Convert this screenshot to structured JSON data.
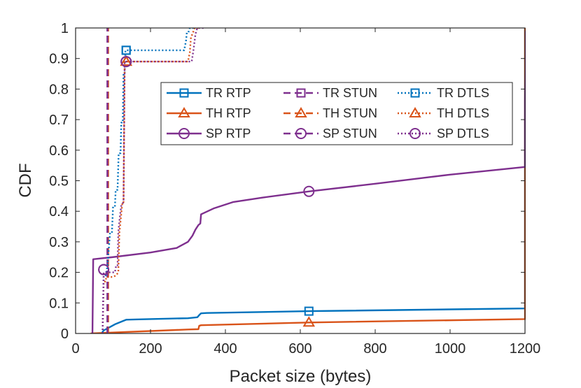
{
  "chart_data": {
    "type": "line",
    "title": "",
    "xlabel": "Packet size (bytes)",
    "ylabel": "CDF",
    "xlim": [
      0,
      1200
    ],
    "ylim": [
      0,
      1
    ],
    "xticks": [
      0,
      200,
      400,
      600,
      800,
      1000,
      1200
    ],
    "yticks": [
      0,
      0.1,
      0.2,
      0.3,
      0.4,
      0.5,
      0.6,
      0.7,
      0.8,
      0.9,
      1
    ],
    "xtick_labels": [
      "0",
      "200",
      "400",
      "600",
      "800",
      "1000",
      "1200"
    ],
    "ytick_labels": [
      "0",
      "0.1",
      "0.2",
      "0.3",
      "0.4",
      "0.5",
      "0.6",
      "0.7",
      "0.8",
      "0.9",
      "1"
    ],
    "grid": false,
    "legend_position": "top-right",
    "legend_columns": 3,
    "colors": {
      "TR": "#0072BD",
      "TH": "#D95319",
      "SP": "#7E2F8E"
    },
    "series": [
      {
        "name": "TR RTP",
        "color": "#0072BD",
        "dash": "solid",
        "marker": "square",
        "points": [
          [
            70,
            0
          ],
          [
            72,
            0.005
          ],
          [
            75,
            0.01
          ],
          [
            90,
            0.02
          ],
          [
            105,
            0.03
          ],
          [
            125,
            0.04
          ],
          [
            135,
            0.045
          ],
          [
            160,
            0.046
          ],
          [
            300,
            0.05
          ],
          [
            325,
            0.053
          ],
          [
            330,
            0.06
          ],
          [
            335,
            0.066
          ],
          [
            350,
            0.067
          ],
          [
            623,
            0.073
          ],
          [
            1200,
            0.082
          ],
          [
            1200,
            1
          ]
        ],
        "markers": [
          [
            135,
            0.927
          ],
          [
            623,
            0.073
          ]
        ]
      },
      {
        "name": "TH RTP",
        "color": "#D95319",
        "dash": "solid",
        "marker": "triangle",
        "points": [
          [
            40,
            0
          ],
          [
            300,
            0.013
          ],
          [
            328,
            0.014
          ],
          [
            330,
            0.025
          ],
          [
            335,
            0.027
          ],
          [
            623,
            0.036
          ],
          [
            1200,
            0.047
          ],
          [
            1200,
            1
          ]
        ],
        "markers": [
          [
            135,
            0.89
          ],
          [
            623,
            0.036
          ]
        ]
      },
      {
        "name": "SP RTP",
        "color": "#7E2F8E",
        "dash": "solid",
        "marker": "circle",
        "points": [
          [
            45,
            0
          ],
          [
            47,
            0.243
          ],
          [
            100,
            0.25
          ],
          [
            200,
            0.265
          ],
          [
            270,
            0.28
          ],
          [
            300,
            0.3
          ],
          [
            312,
            0.32
          ],
          [
            320,
            0.34
          ],
          [
            328,
            0.355
          ],
          [
            333,
            0.36
          ],
          [
            335,
            0.39
          ],
          [
            370,
            0.41
          ],
          [
            420,
            0.43
          ],
          [
            500,
            0.445
          ],
          [
            623,
            0.465
          ],
          [
            800,
            0.49
          ],
          [
            1000,
            0.52
          ],
          [
            1200,
            0.545
          ],
          [
            1200,
            0.76
          ],
          [
            1203,
            0.99
          ]
        ],
        "markers": [
          [
            75,
            0.209
          ],
          [
            135,
            0.89
          ],
          [
            623,
            0.465
          ]
        ]
      },
      {
        "name": "TR STUN",
        "color": "#7E2F8E",
        "dash": "dashed",
        "marker": "square",
        "points": [
          [
            85,
            0
          ],
          [
            85,
            1
          ]
        ],
        "markers": []
      },
      {
        "name": "TH STUN",
        "color": "#D95319",
        "dash": "dashed",
        "marker": "triangle",
        "points": [
          [
            87,
            0
          ],
          [
            87,
            1
          ]
        ],
        "markers": []
      },
      {
        "name": "SP STUN",
        "color": "#7E2F8E",
        "dash": "dashed",
        "marker": "circle",
        "points": [
          [
            85,
            0
          ],
          [
            85,
            1
          ]
        ],
        "markers": []
      },
      {
        "name": "TR DTLS",
        "color": "#0072BD",
        "dash": "dotted",
        "marker": "square",
        "points": [
          [
            72,
            0
          ],
          [
            75,
            0.19
          ],
          [
            80,
            0.19
          ],
          [
            85,
            0.22
          ],
          [
            92,
            0.33
          ],
          [
            97,
            0.33
          ],
          [
            100,
            0.415
          ],
          [
            105,
            0.415
          ],
          [
            107,
            0.47
          ],
          [
            112,
            0.47
          ],
          [
            115,
            0.59
          ],
          [
            120,
            0.59
          ],
          [
            122,
            0.69
          ],
          [
            126,
            0.69
          ],
          [
            128,
            0.85
          ],
          [
            131,
            0.85
          ],
          [
            133,
            0.927
          ],
          [
            290,
            0.927
          ],
          [
            295,
            0.96
          ],
          [
            297,
            0.985
          ],
          [
            301,
            0.985
          ],
          [
            305,
            1
          ],
          [
            320,
            1
          ]
        ],
        "markers": [
          [
            135,
            0.927
          ]
        ]
      },
      {
        "name": "TH DTLS",
        "color": "#D95319",
        "dash": "dotted",
        "marker": "triangle",
        "points": [
          [
            72,
            0
          ],
          [
            75,
            0.17
          ],
          [
            80,
            0.17
          ],
          [
            82,
            0.185
          ],
          [
            100,
            0.185
          ],
          [
            108,
            0.19
          ],
          [
            114,
            0.2
          ],
          [
            117,
            0.33
          ],
          [
            125,
            0.43
          ],
          [
            128,
            0.43
          ],
          [
            131,
            0.89
          ],
          [
            300,
            0.89
          ],
          [
            305,
            0.92
          ],
          [
            308,
            0.97
          ],
          [
            312,
            0.98
          ],
          [
            318,
            1
          ],
          [
            330,
            1
          ]
        ],
        "markers": [
          [
            135,
            0.89
          ]
        ]
      },
      {
        "name": "SP DTLS",
        "color": "#7E2F8E",
        "dash": "dotted",
        "marker": "circle",
        "points": [
          [
            72,
            0
          ],
          [
            75,
            0.2
          ],
          [
            105,
            0.2
          ],
          [
            108,
            0.22
          ],
          [
            112,
            0.22
          ],
          [
            114,
            0.33
          ],
          [
            118,
            0.38
          ],
          [
            122,
            0.42
          ],
          [
            128,
            0.43
          ],
          [
            131,
            0.89
          ],
          [
            310,
            0.89
          ],
          [
            315,
            0.93
          ],
          [
            320,
            0.98
          ],
          [
            325,
            1
          ],
          [
            345,
            1
          ]
        ],
        "markers": [
          [
            75,
            0.209
          ],
          [
            135,
            0.89
          ]
        ]
      }
    ]
  }
}
